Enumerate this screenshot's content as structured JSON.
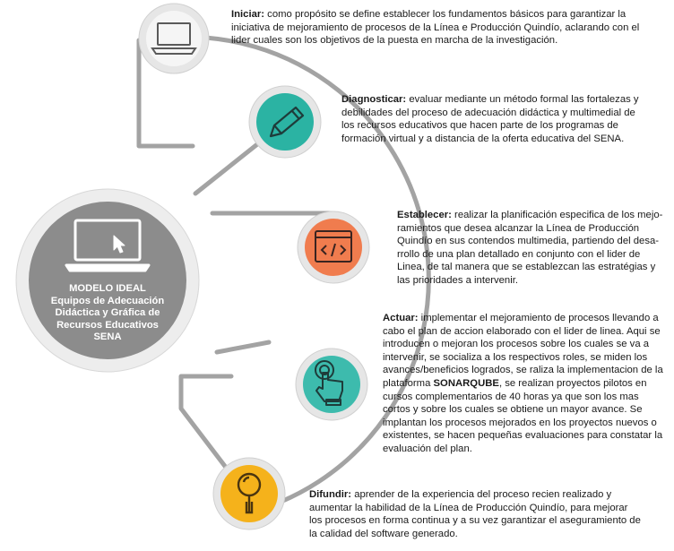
{
  "center": {
    "lines": [
      "MODELO IDEAL",
      "Equipos de Adecuación",
      "Didáctica y Gráfica de",
      "Recursos Educativos",
      "SENA"
    ],
    "icon": "laptop-cursor-icon",
    "color": "#8c8c8c"
  },
  "steps": [
    {
      "label": "Iniciar:",
      "text": " como propósito se define establecer los fundamentos básicos para garantizar la iniciativa de mejoramiento de procesos de la Línea e Producción Quindío, aclarando con el lider cuales son los objetivos de la puesta en marcha de la investigación.",
      "icon": "laptop-icon",
      "color": "#f2f2f2"
    },
    {
      "label": "Diagnosticar:",
      "text": " evaluar mediante un método formal las fortalezas y debilidades del proceso de adecuación didáctica y multimedial de los recursos educativos que hacen parte de los programas de formación virtual y a distancia de la oferta educativa del SENA.",
      "icon": "pencil-icon",
      "color": "#2bb3a3"
    },
    {
      "label": "Establecer:",
      "text": " realizar la planificación especifica de los mejo-ramientos que desea alcanzar la Línea de Producción Quindío en sus contendos multimedia, partiendo del desa-rrollo de una plan detallado en conjunto con el lider de Linea, de tal manera que se establezcan las estratégias y las prioridades a intervenir.",
      "icon": "code-window-icon",
      "color": "#f07c4e"
    },
    {
      "label": "Actuar:",
      "text_before": " implementar el mejoramiento de procesos llevando a cabo el plan de accion elaborado con el lider de linea. Aqui se introducen o mejoran los procesos sobre los cuales se va a intervenir, se socializa a los respectivos roles, se miden los avances/beneficios logrados, se raliza la implementacion de la plataforma ",
      "strong": "SONARQUBE",
      "text_after": ", se realizan proyectos pilotos en cursos complementarios de 40 horas ya que son los mas cortos y sobre los cuales se obtiene un mayor avance. Se implantan los procesos mejorados en los proyectos nuevos o existentes, se hacen pequeñas evaluaciones para constatar la evaluación del plan.",
      "icon": "touch-hand-icon",
      "color": "#3dbbad"
    },
    {
      "label": "Difundir:",
      "text": " aprender de la experiencia del proceso recien realizado y aumentar la habilidad de la Línea de Producción Quindío, para mejorar los procesos en forma continua y a su vez garantizar el aseguramiento de la calidad del software generado.",
      "icon": "magnifier-icon",
      "color": "#f5b21b"
    }
  ]
}
